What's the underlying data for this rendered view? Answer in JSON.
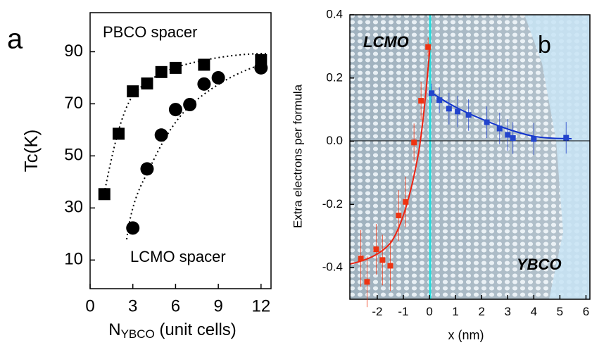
{
  "chart_data": [
    {
      "type": "scatter",
      "panel_label": "a",
      "x_label": {
        "main": "N",
        "sub": "YBCO",
        "rest": " (unit cells)"
      },
      "y_label": "Tc(K)",
      "xlim": [
        0,
        12.7
      ],
      "ylim": [
        -1,
        105
      ],
      "xticks": [
        0,
        3,
        6,
        9,
        12
      ],
      "yticks": [
        10,
        30,
        50,
        70,
        90
      ],
      "series": [
        {
          "name": "PBCO spacer",
          "marker": "square",
          "color": "#000000",
          "x": [
            1,
            2,
            3,
            4,
            5,
            6,
            8,
            12
          ],
          "values": [
            35.3,
            58.5,
            74.8,
            77.8,
            82.2,
            83.8,
            85,
            86.8
          ]
        },
        {
          "name": "LCMO spacer",
          "marker": "circle",
          "color": "#000000",
          "x": [
            3,
            4,
            5,
            6,
            7,
            8,
            9,
            12
          ],
          "values": [
            22.3,
            45,
            58,
            67.8,
            69.7,
            77.6,
            80,
            83.8
          ]
        }
      ]
    },
    {
      "type": "scatter",
      "panel_label": "b",
      "x_label": "x (nm)",
      "y_label": "Extra electrons per formula",
      "xlim": [
        -3.05,
        6.15
      ],
      "ylim": [
        -0.5,
        0.4
      ],
      "xticks": [
        -2,
        -1,
        0,
        1,
        2,
        3,
        4,
        5,
        6
      ],
      "yticks": [
        0.4,
        0.2,
        {
          "value": 0,
          "label": "0.0"
        },
        -0.2,
        -0.4
      ],
      "series": [
        {
          "name": "LCMO",
          "marker": "square",
          "color": "#ee3311",
          "x": [
            -2.63,
            -2.39,
            -2.04,
            -1.8,
            -1.5,
            -1.18,
            -0.91,
            -0.59,
            -0.32,
            -0.05
          ],
          "values": [
            -0.371,
            -0.445,
            -0.342,
            -0.376,
            -0.394,
            -0.235,
            -0.192,
            -0.004,
            0.128,
            0.298
          ],
          "errors": [
            0.09,
            0.08,
            0.08,
            0.08,
            0.08,
            0.08,
            0.08,
            0.06,
            0.06,
            0.03
          ]
        },
        {
          "name": "YBCO",
          "marker": "square",
          "color": "#2244cc",
          "x": [
            0.08,
            0.38,
            0.75,
            1.08,
            1.5,
            2.2,
            2.69,
            3.0,
            3.2,
            4.0,
            5.24
          ],
          "values": [
            0.152,
            0.13,
            0.103,
            0.094,
            0.083,
            0.06,
            0.04,
            0.02,
            0.01,
            0.007,
            0.011
          ],
          "errors": [
            0.03,
            0.04,
            0.05,
            0.05,
            0.05,
            0.05,
            0.05,
            0.05,
            0.05,
            0.05,
            0.05
          ]
        }
      ]
    }
  ]
}
